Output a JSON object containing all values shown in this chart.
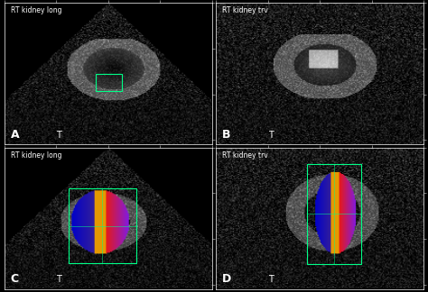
{
  "figsize": [
    4.74,
    3.24
  ],
  "dpi": 100,
  "background_color": "#000000",
  "border_color": "#ffffff",
  "panel_labels": [
    "A",
    "B",
    "C",
    "D"
  ],
  "panel_sublabels": [
    "T",
    "T",
    "T",
    "T"
  ],
  "bottom_texts": [
    "RT kidney long",
    "RT kidney trv",
    "RT kidney long",
    "RT kidney trv"
  ],
  "label_color": "#ffffff",
  "text_fontsize": 7,
  "label_fontsize": 9,
  "tick_color": "#aaaaaa",
  "divider_color": "#888888",
  "green_box_color": "#00ff88"
}
